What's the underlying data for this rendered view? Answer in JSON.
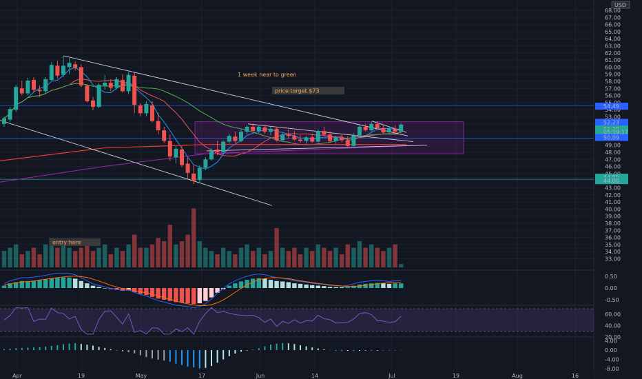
{
  "chart_data": {
    "type": "candlestick",
    "currency": "USD",
    "x_ticks": [
      "Apr",
      "19",
      "May",
      "17",
      "Jun",
      "14",
      "Jul",
      "19",
      "Aug",
      "16"
    ],
    "price_ticks": [
      "68.00",
      "67.00",
      "66.00",
      "65.00",
      "64.00",
      "63.00",
      "62.00",
      "61.00",
      "60.00",
      "59.00",
      "58.00",
      "57.00",
      "56.00",
      "55.00",
      "54.00",
      "53.00",
      "52.00",
      "51.00",
      "50.00",
      "49.00",
      "48.00",
      "47.00",
      "46.00",
      "45.00",
      "44.00",
      "43.00",
      "42.00",
      "41.00",
      "40.00",
      "39.00",
      "38.00",
      "37.00",
      "36.00",
      "35.00",
      "34.00",
      "33.00"
    ],
    "price_ylim": [
      33,
      68
    ],
    "price_badges": [
      {
        "text": "54.49",
        "value": 54.49,
        "color": "#2962ff"
      },
      {
        "text": "52.23",
        "value": 52.23,
        "color": "#2962ff"
      },
      {
        "text": "51.29",
        "value": 51.29,
        "color": "#26a69a"
      },
      {
        "text": "05:19:17",
        "value": 50.85,
        "color": "#26a69a"
      },
      {
        "text": "50.09",
        "value": 50.09,
        "color": "#2962ff"
      },
      {
        "text": "44.50",
        "value": 44.5,
        "color": "#26a69a"
      },
      {
        "text": "44.00",
        "value": 44.0,
        "color": "#26a69a"
      }
    ],
    "macd_ticks": [
      "0.50",
      "0.00",
      "-0.50"
    ],
    "rsi_ticks": [
      "60.00",
      "40.00",
      "20.00"
    ],
    "osc_ticks": [
      "4.00",
      "0.00",
      "-4.00",
      "-8.00"
    ],
    "annotations": [
      {
        "text": "1 week near to green",
        "color": "#f0a45d"
      },
      {
        "text": "price target $73",
        "color": "#f0a45d"
      },
      {
        "text": "entry here",
        "color": "#f0a45d"
      }
    ],
    "candles": [
      [
        52.0,
        53.0,
        51.6,
        52.8
      ],
      [
        52.6,
        54.4,
        52.3,
        54.1
      ],
      [
        54.0,
        57.5,
        53.7,
        57.2
      ],
      [
        57.0,
        58.1,
        56.0,
        56.3
      ],
      [
        56.3,
        58.5,
        56.0,
        58.1
      ],
      [
        58.2,
        58.6,
        56.4,
        56.8
      ],
      [
        56.8,
        57.4,
        55.8,
        56.6
      ],
      [
        56.6,
        58.6,
        56.2,
        58.3
      ],
      [
        58.2,
        60.7,
        58.0,
        60.3
      ],
      [
        60.2,
        60.9,
        58.4,
        58.8
      ],
      [
        58.9,
        61.6,
        58.6,
        60.2
      ],
      [
        60.0,
        61.3,
        59.0,
        60.6
      ],
      [
        60.4,
        60.8,
        59.5,
        59.9
      ],
      [
        60.0,
        60.4,
        57.2,
        57.4
      ],
      [
        57.4,
        57.6,
        55.0,
        55.2
      ],
      [
        55.3,
        55.8,
        53.9,
        54.4
      ],
      [
        54.4,
        57.8,
        54.2,
        57.5
      ],
      [
        57.4,
        58.9,
        56.8,
        57.8
      ],
      [
        57.8,
        58.3,
        56.6,
        57.1
      ],
      [
        57.1,
        58.6,
        56.9,
        58.3
      ],
      [
        58.2,
        59.0,
        56.4,
        56.6
      ],
      [
        56.6,
        59.3,
        56.2,
        58.9
      ],
      [
        58.8,
        59.2,
        53.5,
        54.7
      ],
      [
        54.6,
        54.9,
        53.1,
        53.5
      ],
      [
        53.5,
        55.2,
        53.1,
        54.8
      ],
      [
        54.6,
        55.2,
        52.2,
        52.4
      ],
      [
        52.4,
        53.6,
        50.5,
        51.1
      ],
      [
        51.1,
        51.6,
        49.3,
        49.6
      ],
      [
        49.6,
        50.5,
        46.8,
        47.4
      ],
      [
        47.3,
        48.9,
        46.4,
        48.5
      ],
      [
        48.4,
        48.9,
        45.9,
        46.2
      ],
      [
        46.4,
        47.3,
        44.3,
        45.1
      ],
      [
        45.0,
        46.2,
        43.5,
        44.0
      ],
      [
        44.1,
        46.2,
        43.7,
        45.8
      ],
      [
        45.8,
        47.3,
        45.5,
        47.0
      ],
      [
        47.0,
        48.6,
        46.8,
        48.3
      ],
      [
        48.4,
        49.6,
        47.6,
        48.0
      ],
      [
        48.0,
        49.7,
        47.8,
        49.5
      ],
      [
        49.5,
        50.6,
        49.2,
        50.3
      ],
      [
        50.2,
        50.9,
        49.3,
        49.6
      ],
      [
        49.6,
        51.2,
        49.4,
        50.9
      ],
      [
        50.9,
        51.8,
        50.5,
        51.6
      ],
      [
        51.6,
        52.1,
        50.8,
        51.0
      ],
      [
        51.0,
        51.9,
        50.7,
        51.6
      ],
      [
        51.5,
        51.8,
        50.6,
        50.9
      ],
      [
        50.9,
        51.6,
        50.4,
        51.3
      ],
      [
        51.3,
        51.6,
        49.5,
        49.7
      ],
      [
        49.7,
        50.7,
        49.6,
        50.5
      ],
      [
        50.5,
        51.2,
        49.9,
        50.3
      ],
      [
        50.3,
        51.0,
        49.6,
        49.8
      ],
      [
        49.8,
        50.4,
        49.3,
        49.6
      ],
      [
        49.6,
        50.3,
        49.2,
        50.1
      ],
      [
        50.1,
        50.6,
        49.3,
        49.5
      ],
      [
        49.5,
        51.2,
        49.4,
        51.0
      ],
      [
        51.0,
        51.6,
        50.3,
        50.5
      ],
      [
        50.5,
        50.9,
        49.4,
        49.6
      ],
      [
        49.6,
        50.3,
        49.2,
        50.1
      ],
      [
        50.1,
        50.6,
        49.4,
        49.7
      ],
      [
        49.7,
        50.3,
        48.6,
        48.9
      ],
      [
        48.9,
        50.7,
        48.8,
        50.4
      ],
      [
        50.4,
        51.9,
        50.1,
        51.6
      ],
      [
        51.6,
        52.0,
        50.9,
        51.1
      ],
      [
        51.1,
        52.3,
        50.9,
        52.0
      ],
      [
        52.0,
        52.4,
        51.2,
        51.4
      ],
      [
        51.4,
        51.9,
        50.6,
        50.8
      ],
      [
        50.8,
        51.6,
        50.6,
        51.3
      ],
      [
        51.3,
        51.8,
        50.5,
        50.9
      ],
      [
        50.9,
        52.1,
        50.7,
        51.9
      ]
    ],
    "volumes": [
      0.25,
      0.3,
      0.35,
      0.2,
      0.25,
      0.3,
      0.2,
      0.35,
      0.45,
      0.3,
      0.4,
      0.3,
      0.25,
      0.3,
      0.35,
      0.25,
      0.3,
      0.35,
      0.2,
      0.3,
      0.25,
      0.35,
      0.5,
      0.3,
      0.3,
      0.35,
      0.45,
      0.4,
      0.65,
      0.35,
      0.4,
      0.5,
      0.9,
      0.4,
      0.3,
      0.25,
      0.2,
      0.3,
      0.25,
      0.2,
      0.3,
      0.35,
      0.25,
      0.3,
      0.2,
      0.25,
      0.6,
      0.3,
      0.25,
      0.3,
      0.2,
      0.3,
      0.25,
      0.35,
      0.3,
      0.25,
      0.3,
      0.2,
      0.35,
      0.3,
      0.4,
      0.3,
      0.35,
      0.3,
      0.25,
      0.3,
      0.35,
      0.05
    ],
    "macd_hist": [
      0.1,
      0.2,
      0.25,
      0.3,
      0.3,
      0.32,
      0.35,
      0.38,
      0.42,
      0.45,
      0.45,
      0.45,
      0.4,
      0.3,
      0.2,
      0.1,
      0.05,
      0.0,
      -0.05,
      -0.08,
      -0.12,
      -0.1,
      -0.18,
      -0.25,
      -0.3,
      -0.38,
      -0.45,
      -0.5,
      -0.55,
      -0.6,
      -0.62,
      -0.65,
      -0.68,
      -0.65,
      -0.55,
      -0.4,
      -0.2,
      -0.05,
      0.1,
      0.2,
      0.28,
      0.35,
      0.4,
      0.42,
      0.4,
      0.35,
      0.3,
      0.28,
      0.25,
      0.2,
      0.18,
      0.15,
      0.12,
      0.1,
      0.08,
      0.05,
      0.04,
      0.03,
      0.05,
      0.1,
      0.15,
      0.18,
      0.2,
      0.22,
      0.2,
      0.18,
      0.2,
      0.2
    ],
    "osc_hist": [
      0.4,
      0.6,
      0.8,
      0.9,
      1.0,
      1.1,
      1.2,
      1.5,
      1.8,
      2.1,
      2.5,
      2.8,
      2.9,
      2.6,
      2.3,
      1.9,
      1.4,
      0.9,
      0.4,
      -0.2,
      -0.6,
      -0.9,
      -1.4,
      -2.2,
      -3.0,
      -3.6,
      -4.1,
      -4.5,
      -5.0,
      -5.8,
      -6.4,
      -7.0,
      -7.4,
      -7.8,
      -7.6,
      -6.8,
      -5.4,
      -4.0,
      -2.6,
      -1.5,
      -0.7,
      -0.2,
      0.2,
      0.8,
      1.6,
      2.4,
      2.8,
      3.0,
      2.9,
      2.6,
      2.1,
      1.6,
      1.1,
      0.7,
      0.3,
      -0.1,
      -0.3,
      -0.4,
      -0.3,
      -0.4,
      -0.3,
      -0.2,
      -0.3,
      -0.2,
      -0.2,
      -0.2,
      -0.1,
      -0.1
    ]
  }
}
